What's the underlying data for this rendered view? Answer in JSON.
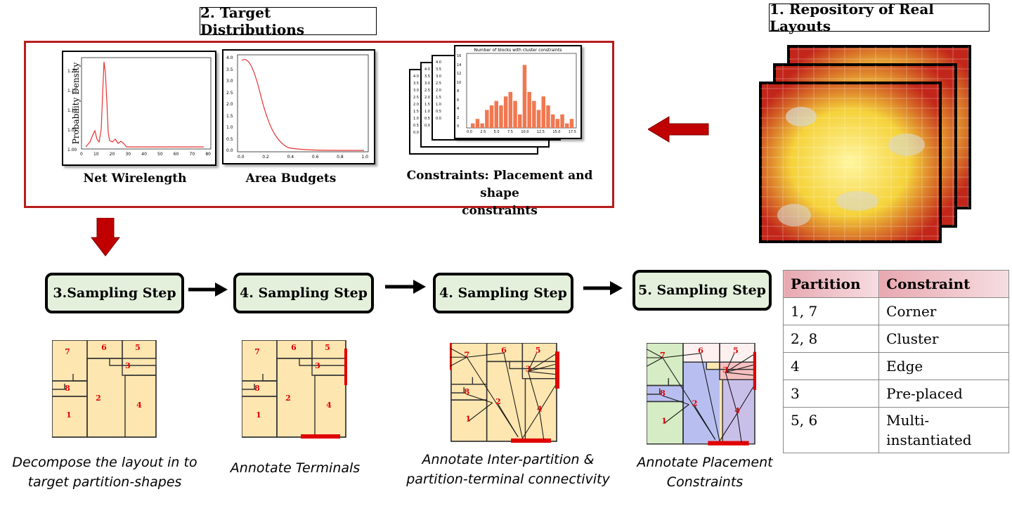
{
  "titles": {
    "target_distributions": "2. Target Distributions",
    "repository": "1. Repository of Real Layouts"
  },
  "panels": {
    "net_wirelength": {
      "caption": "Net Wirelength",
      "ylabel": "Probability Density",
      "yticks": [
        "1.20",
        "1.15",
        "1.10",
        "1.05",
        "1.00"
      ],
      "xticks": [
        "0",
        "10",
        "20",
        "30",
        "40",
        "50",
        "60",
        "70",
        "80"
      ]
    },
    "area_budgets": {
      "caption": "Area Budgets",
      "yticks": [
        "4.0",
        "3.5",
        "3.0",
        "2.5",
        "2.0",
        "1.5",
        "1.0",
        "0.5",
        "0.0"
      ],
      "xticks": [
        "0.0",
        "0.2",
        "0.4",
        "0.6",
        "0.8",
        "1.0"
      ]
    },
    "constraints": {
      "caption_line1": "Constraints: Placement and shape",
      "caption_line2": "constraints",
      "plot_title": "Number of blocks with cluster constraints",
      "yticks": [
        "16",
        "14",
        "12",
        "10",
        "8",
        "6",
        "4",
        "2",
        "0"
      ],
      "xticks": [
        "0.0",
        "2.5",
        "5.0",
        "7.5",
        "10.0",
        "12.5",
        "15.0",
        "17.5"
      ],
      "bar_color": "#f07850"
    }
  },
  "steps": [
    {
      "label": "3.Sampling Step",
      "desc_line1": "Decompose the layout in to",
      "desc_line2": "target partition-shapes"
    },
    {
      "label": "4. Sampling Step",
      "desc_line1": "Annotate Terminals",
      "desc_line2": ""
    },
    {
      "label": "4. Sampling Step",
      "desc_line1": "Annotate Inter-partition &",
      "desc_line2": "partition-terminal connectivity"
    },
    {
      "label": "5. Sampling Step",
      "desc_line1": "Annotate Placement",
      "desc_line2": "Constraints"
    }
  ],
  "partition_labels": [
    "7",
    "6",
    "5",
    "3",
    "8",
    "2",
    "4",
    "1"
  ],
  "table": {
    "headers": [
      "Partition",
      "Constraint"
    ],
    "rows": [
      [
        "1, 7",
        "Corner"
      ],
      [
        "2, 8",
        "Cluster"
      ],
      [
        "4",
        "Edge"
      ],
      [
        "3",
        "Pre-placed"
      ],
      [
        "5, 6",
        "Multi-instantiated"
      ]
    ]
  },
  "colors": {
    "frame_red": "#b71c1c",
    "arrow_red": "#c00000",
    "partition_fill": "#fde6b0",
    "label_red": "#e00000",
    "step_fill": "#e4f0dc"
  }
}
